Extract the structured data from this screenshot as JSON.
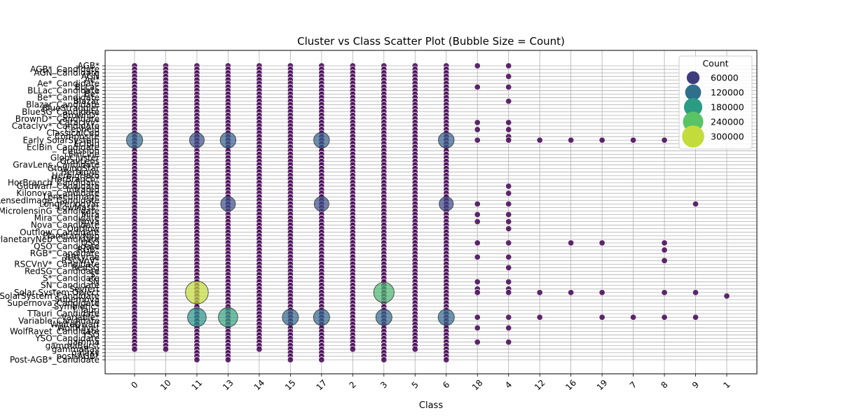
{
  "chart_data": {
    "type": "scatter",
    "title": "Cluster vs Class Scatter Plot (Bubble Size = Count)",
    "xlabel": "Class",
    "ylabel": "",
    "x_categories": [
      "0",
      "10",
      "11",
      "13",
      "14",
      "15",
      "17",
      "2",
      "3",
      "5",
      "6",
      "18",
      "4",
      "12",
      "16",
      "19",
      "7",
      "8",
      "9",
      "1"
    ],
    "y_visible_labels": [
      "AGB*",
      "AGB*_Candidate",
      "AGN_Candidate",
      "AGN",
      "Ae*",
      "Ae*_Candidate",
      "BLLac",
      "BLLac_Candidate",
      "Be*",
      "Be*_Candidate",
      "Blazar",
      "Blazar_Candidate",
      "BlueStraggler",
      "BlueSG_Candidate",
      "BrownD*",
      "BrownD*_Candidate",
      "Cataclyv*",
      "Cataclyv*_Candidate",
      "Cepheid",
      "ClassicalCep",
      "Composite",
      "Early SolarSystem",
      "EclBin",
      "EclBin_Candidate",
      "Emission",
      "EmLine",
      "GlobCluster",
      "GravLens",
      "GravLens_Candidate",
      "GtowingStar",
      "HerbigAe",
      "HerbigHaro",
      "HorBranch*",
      "HorBranch_Candidate",
      "Gudwarf_Candidate",
      "Infrared",
      "Kilonova_Candidate",
      "LensedImage",
      "LensedImage_Candidate",
      "LongPeriodVar",
      "LowMass*",
      "MicrolensinG_Candidate",
      "Mira",
      "Mira_Candidate",
      "Nova",
      "Nova_Candidate",
      "Outflow",
      "Outflow_Candidate",
      "PlanetaryNeb",
      "PlanetaryNeb_Candidate",
      "QSO",
      "QSO_Candidate",
      "RGB*",
      "RGB*_Candidate",
      "RRLyrae",
      "RSCVnV*",
      "RSCVnV*_Candidate",
      "RedSG",
      "RedSG_Candidate",
      "S*",
      "S*_Candidate",
      "SN",
      "SN_Candidate",
      "Seyfert",
      "Solar System Object",
      "SolarSystem_Candidate",
      "Supernova",
      "Supernova_Candidate",
      "Symbiotic*",
      "T Tauri",
      "TTauri_Candidate",
      "Variable*",
      "Variable_Candidate",
      "WhiteDwarf",
      "WolfRayet",
      "WolfRayet_Candidate",
      "YSO",
      "YSO_Candidate",
      "gamma",
      "gammaBurst",
      "gammaRay",
      "galaxy",
      "post-AGB*",
      "Post-AGB*_Candidate"
    ],
    "legend": {
      "title": "Count",
      "placement": "top-right",
      "entries": [
        60000,
        120000,
        180000,
        240000,
        300000
      ]
    },
    "colormap": "viridis",
    "color_range": [
      0,
      330000
    ],
    "grid": true,
    "highlight_points": [
      {
        "x": "0",
        "y": "Early SolarSystem",
        "count": 110000
      },
      {
        "x": "11",
        "y": "Early SolarSystem",
        "count": 80000
      },
      {
        "x": "13",
        "y": "Early SolarSystem",
        "count": 100000
      },
      {
        "x": "17",
        "y": "Early SolarSystem",
        "count": 100000
      },
      {
        "x": "6",
        "y": "Early SolarSystem",
        "count": 100000
      },
      {
        "x": "13",
        "y": "LongPeriodVar",
        "count": 80000
      },
      {
        "x": "17",
        "y": "LongPeriodVar",
        "count": 80000
      },
      {
        "x": "6",
        "y": "LongPeriodVar",
        "count": 70000
      },
      {
        "x": "11",
        "y": "Solar System Object",
        "count": 300000
      },
      {
        "x": "3",
        "y": "Solar System Object",
        "count": 220000
      },
      {
        "x": "11",
        "y": "Variable*",
        "count": 170000
      },
      {
        "x": "13",
        "y": "Variable*",
        "count": 190000
      },
      {
        "x": "15",
        "y": "Variable*",
        "count": 110000
      },
      {
        "x": "17",
        "y": "Variable*",
        "count": 110000
      },
      {
        "x": "3",
        "y": "Variable*",
        "count": 110000
      },
      {
        "x": "6",
        "y": "Variable*",
        "count": 110000
      }
    ],
    "column_extents": [
      {
        "x": "0",
        "y_range": [
          "AGB*",
          "gammaRay"
        ]
      },
      {
        "x": "10",
        "y_range": [
          "AGB*",
          "gammaRay"
        ]
      },
      {
        "x": "11",
        "y_range": [
          "AGB*",
          "Post-AGB*_Candidate"
        ]
      },
      {
        "x": "13",
        "y_range": [
          "AGB*",
          "Post-AGB*_Candidate"
        ]
      },
      {
        "x": "14",
        "y_range": [
          "AGB*",
          "gammaRay"
        ]
      },
      {
        "x": "15",
        "y_range": [
          "AGB*",
          "Post-AGB*_Candidate"
        ]
      },
      {
        "x": "17",
        "y_range": [
          "AGB*",
          "Post-AGB*_Candidate"
        ]
      },
      {
        "x": "2",
        "y_range": [
          "AGB*",
          "gammaRay"
        ]
      },
      {
        "x": "3",
        "y_range": [
          "AGB*",
          "Post-AGB*_Candidate"
        ]
      },
      {
        "x": "5",
        "y_range": [
          "AGB*",
          "gammaRay"
        ]
      },
      {
        "x": "6",
        "y_range": [
          "AGB*",
          "Post-AGB*_Candidate"
        ]
      }
    ],
    "sparse_points": [
      {
        "x": "18",
        "y": "AGB*"
      },
      {
        "x": "18",
        "y": "BLLac"
      },
      {
        "x": "18",
        "y": "Cataclyv*"
      },
      {
        "x": "18",
        "y": "Cepheid"
      },
      {
        "x": "18",
        "y": "Early SolarSystem"
      },
      {
        "x": "18",
        "y": "LongPeriodVar"
      },
      {
        "x": "18",
        "y": "Mira"
      },
      {
        "x": "18",
        "y": "Nova"
      },
      {
        "x": "18",
        "y": "QSO"
      },
      {
        "x": "18",
        "y": "RRLyrae"
      },
      {
        "x": "18",
        "y": "SN"
      },
      {
        "x": "18",
        "y": "Seyfert"
      },
      {
        "x": "18",
        "y": "Solar System Object"
      },
      {
        "x": "18",
        "y": "Variable*"
      },
      {
        "x": "18",
        "y": "WolfRayet"
      },
      {
        "x": "18",
        "y": "gamma"
      },
      {
        "x": "4",
        "y": "AGB*"
      },
      {
        "x": "4",
        "y": "AGN"
      },
      {
        "x": "4",
        "y": "BLLac"
      },
      {
        "x": "4",
        "y": "Blazar"
      },
      {
        "x": "4",
        "y": "Cataclyv*"
      },
      {
        "x": "4",
        "y": "Cepheid"
      },
      {
        "x": "4",
        "y": "Composite"
      },
      {
        "x": "4",
        "y": "Early SolarSystem"
      },
      {
        "x": "4",
        "y": "Gudwarf_Candidate"
      },
      {
        "x": "4",
        "y": "Kilonova_Candidate"
      },
      {
        "x": "4",
        "y": "LongPeriodVar"
      },
      {
        "x": "4",
        "y": "Mira"
      },
      {
        "x": "4",
        "y": "Nova"
      },
      {
        "x": "4",
        "y": "Outflow"
      },
      {
        "x": "4",
        "y": "QSO"
      },
      {
        "x": "4",
        "y": "RRLyrae"
      },
      {
        "x": "4",
        "y": "RedSG"
      },
      {
        "x": "4",
        "y": "SN"
      },
      {
        "x": "4",
        "y": "Seyfert"
      },
      {
        "x": "4",
        "y": "Solar System Object"
      },
      {
        "x": "4",
        "y": "Variable*"
      },
      {
        "x": "4",
        "y": "WolfRayet"
      },
      {
        "x": "4",
        "y": "gamma"
      },
      {
        "x": "12",
        "y": "Early SolarSystem"
      },
      {
        "x": "12",
        "y": "Solar System Object"
      },
      {
        "x": "12",
        "y": "Variable*"
      },
      {
        "x": "16",
        "y": "Early SolarSystem"
      },
      {
        "x": "16",
        "y": "QSO"
      },
      {
        "x": "16",
        "y": "Solar System Object"
      },
      {
        "x": "19",
        "y": "Early SolarSystem"
      },
      {
        "x": "19",
        "y": "QSO"
      },
      {
        "x": "19",
        "y": "Solar System Object"
      },
      {
        "x": "19",
        "y": "Variable*"
      },
      {
        "x": "7",
        "y": "Early SolarSystem"
      },
      {
        "x": "7",
        "y": "Variable*"
      },
      {
        "x": "8",
        "y": "Early SolarSystem"
      },
      {
        "x": "8",
        "y": "QSO"
      },
      {
        "x": "8",
        "y": "RGB*"
      },
      {
        "x": "8",
        "y": "RSCVnV*"
      },
      {
        "x": "8",
        "y": "Solar System Object"
      },
      {
        "x": "8",
        "y": "Variable*"
      },
      {
        "x": "9",
        "y": "LongPeriodVar"
      },
      {
        "x": "9",
        "y": "Solar System Object"
      },
      {
        "x": "9",
        "y": "Variable*"
      },
      {
        "x": "1",
        "y": "SolarSystem_Candidate"
      }
    ]
  }
}
